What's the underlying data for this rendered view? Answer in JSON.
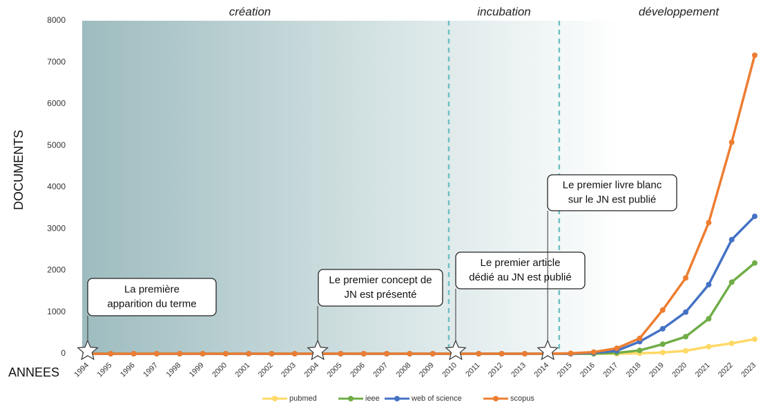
{
  "chart_data": {
    "type": "line",
    "ylabel": "DOCUMENTS",
    "xlabel": "ANNEES",
    "categories": [
      "1994",
      "1995",
      "1996",
      "1997",
      "1998",
      "1999",
      "2000",
      "2001",
      "2002",
      "2003",
      "2004",
      "2005",
      "2006",
      "2007",
      "2008",
      "2009",
      "2010",
      "2011",
      "2012",
      "2013",
      "2014",
      "2015",
      "2016",
      "2017",
      "2018",
      "2019",
      "2020",
      "2021",
      "2022",
      "2023"
    ],
    "ylim": [
      0,
      8000
    ],
    "yticks": [
      0,
      1000,
      2000,
      3000,
      4000,
      5000,
      6000,
      7000,
      8000
    ],
    "series": [
      {
        "name": "pubmed",
        "color": "#ffd966",
        "values": [
          0,
          0,
          0,
          0,
          0,
          0,
          0,
          0,
          0,
          0,
          0,
          0,
          0,
          0,
          0,
          0,
          0,
          0,
          0,
          0,
          0,
          0,
          0,
          0,
          10,
          30,
          70,
          170,
          250,
          350
        ]
      },
      {
        "name": "ieee",
        "color": "#70ad47",
        "values": [
          0,
          0,
          0,
          0,
          0,
          0,
          0,
          0,
          0,
          0,
          0,
          0,
          0,
          0,
          0,
          0,
          0,
          0,
          0,
          0,
          0,
          0,
          0,
          20,
          80,
          230,
          410,
          840,
          1720,
          2180
        ]
      },
      {
        "name": "web of science",
        "color": "#4472c4",
        "values": [
          0,
          0,
          0,
          0,
          0,
          0,
          0,
          0,
          0,
          0,
          0,
          0,
          0,
          0,
          0,
          0,
          0,
          0,
          0,
          0,
          0,
          0,
          20,
          70,
          290,
          600,
          1000,
          1660,
          2740,
          3300
        ]
      },
      {
        "name": "scopus",
        "color": "#ed7d31",
        "values": [
          0,
          0,
          0,
          0,
          0,
          0,
          0,
          0,
          0,
          0,
          0,
          0,
          0,
          0,
          0,
          0,
          0,
          0,
          0,
          0,
          0,
          10,
          40,
          130,
          370,
          1050,
          1820,
          3150,
          5080,
          7170
        ]
      }
    ],
    "phases": [
      "création",
      "incubation",
      "développement"
    ],
    "phase_boundaries": [
      2009.7,
      2014.5
    ],
    "annotations": [
      {
        "x": 1994,
        "lines": [
          "La première",
          "apparition du terme"
        ]
      },
      {
        "x": 2004,
        "lines": [
          "Le premier concept de",
          "JN est présenté"
        ]
      },
      {
        "x": 2010,
        "lines": [
          "Le premier article",
          "dédié au JN est publié"
        ]
      },
      {
        "x": 2014,
        "lines": [
          "Le premier livre blanc",
          "sur le JN est publié"
        ]
      }
    ]
  }
}
